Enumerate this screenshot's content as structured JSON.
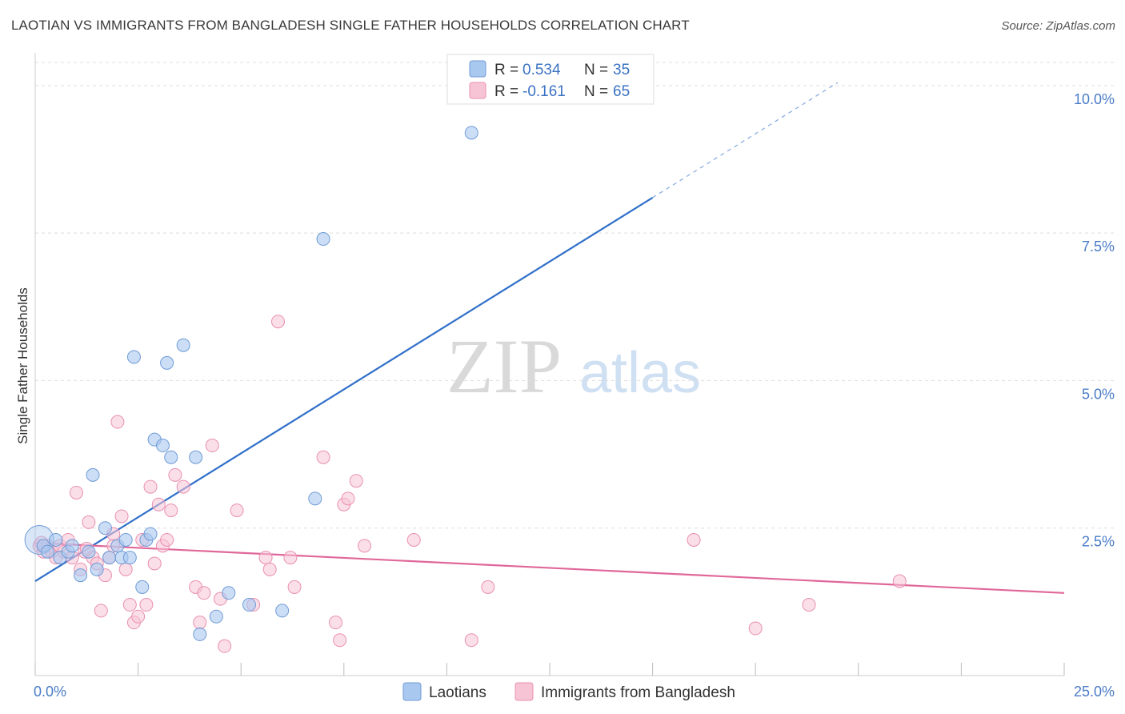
{
  "title": "LAOTIAN VS IMMIGRANTS FROM BANGLADESH SINGLE FATHER HOUSEHOLDS CORRELATION CHART",
  "source": "Source: ZipAtlas.com",
  "watermark": {
    "zip": "ZIP",
    "atlas": "atlas"
  },
  "colors": {
    "laotian_fill": "#a9c8f0",
    "laotian_stroke": "#6f9bd6",
    "laotian_line": "#3170c9",
    "bangladesh_fill": "#f7c4d6",
    "bangladesh_stroke": "#e98fb0",
    "bangladesh_line": "#e0679a",
    "tick_label": "#4a7cc7",
    "grid": "#dddddd"
  },
  "legend": {
    "r_label": "R =",
    "n_label": "N =",
    "laotian": {
      "r": "0.534",
      "n": "35"
    },
    "bangladesh": {
      "r": "-0.161",
      "n": "65"
    }
  },
  "chart_data": {
    "type": "scatter",
    "ylabel": "Single Father Households",
    "xlim": [
      0,
      25
    ],
    "ylim": [
      0,
      10.5
    ],
    "x_tick_labels": [
      "0.0%",
      "25.0%"
    ],
    "y_ticks": [
      2.5,
      5.0,
      7.5,
      10.0
    ],
    "y_tick_labels": [
      "2.5%",
      "5.0%",
      "7.5%",
      "10.0%"
    ],
    "grid": "horizontal dashed",
    "series": [
      {
        "name": "Laotians",
        "trend": {
          "x0": 0.0,
          "y0": 1.6,
          "x1": 15.0,
          "y1": 8.1,
          "dashed_to_x": 19.5,
          "dashed_to_y": 10.05
        },
        "points": [
          [
            0.1,
            2.3
          ],
          [
            0.2,
            2.2
          ],
          [
            0.3,
            2.1
          ],
          [
            0.5,
            2.3
          ],
          [
            0.6,
            2.0
          ],
          [
            0.8,
            2.1
          ],
          [
            0.9,
            2.2
          ],
          [
            1.1,
            1.7
          ],
          [
            1.3,
            2.1
          ],
          [
            1.4,
            3.4
          ],
          [
            1.5,
            1.8
          ],
          [
            1.7,
            2.5
          ],
          [
            1.8,
            2.0
          ],
          [
            2.0,
            2.2
          ],
          [
            2.1,
            2.0
          ],
          [
            2.2,
            2.3
          ],
          [
            2.3,
            2.0
          ],
          [
            2.4,
            5.4
          ],
          [
            2.6,
            1.5
          ],
          [
            2.7,
            2.3
          ],
          [
            2.8,
            2.4
          ],
          [
            2.9,
            4.0
          ],
          [
            3.1,
            3.9
          ],
          [
            3.2,
            5.3
          ],
          [
            3.3,
            3.7
          ],
          [
            3.6,
            5.6
          ],
          [
            3.9,
            3.7
          ],
          [
            4.0,
            0.7
          ],
          [
            4.4,
            1.0
          ],
          [
            4.7,
            1.4
          ],
          [
            5.2,
            1.2
          ],
          [
            6.0,
            1.1
          ],
          [
            6.8,
            3.0
          ],
          [
            7.0,
            7.4
          ],
          [
            10.6,
            9.2
          ]
        ]
      },
      {
        "name": "Immigrants from Bangladesh",
        "trend": {
          "x0": 0.0,
          "y0": 2.25,
          "x1": 25.0,
          "y1": 1.4
        },
        "points": [
          [
            0.1,
            2.2
          ],
          [
            0.2,
            2.1
          ],
          [
            0.3,
            2.2
          ],
          [
            0.4,
            2.1
          ],
          [
            0.5,
            2.0
          ],
          [
            0.6,
            2.2
          ],
          [
            0.7,
            2.1
          ],
          [
            0.8,
            2.3
          ],
          [
            0.9,
            2.0
          ],
          [
            1.0,
            3.1
          ],
          [
            1.1,
            1.8
          ],
          [
            1.2,
            2.1
          ],
          [
            1.3,
            2.6
          ],
          [
            1.4,
            2.0
          ],
          [
            1.5,
            1.9
          ],
          [
            1.6,
            1.1
          ],
          [
            1.7,
            1.7
          ],
          [
            1.8,
            2.0
          ],
          [
            1.9,
            2.2
          ],
          [
            2.0,
            4.3
          ],
          [
            2.1,
            2.7
          ],
          [
            2.2,
            1.8
          ],
          [
            2.3,
            1.2
          ],
          [
            2.4,
            0.9
          ],
          [
            2.5,
            1.0
          ],
          [
            2.6,
            2.3
          ],
          [
            2.7,
            1.2
          ],
          [
            2.8,
            3.2
          ],
          [
            2.9,
            1.9
          ],
          [
            3.0,
            2.9
          ],
          [
            3.1,
            2.2
          ],
          [
            3.2,
            2.3
          ],
          [
            3.3,
            2.8
          ],
          [
            3.4,
            3.4
          ],
          [
            3.6,
            3.2
          ],
          [
            3.9,
            1.5
          ],
          [
            4.0,
            0.9
          ],
          [
            4.1,
            1.4
          ],
          [
            4.3,
            3.9
          ],
          [
            4.5,
            1.3
          ],
          [
            4.6,
            0.5
          ],
          [
            4.9,
            2.8
          ],
          [
            5.3,
            1.2
          ],
          [
            5.6,
            2.0
          ],
          [
            5.7,
            1.8
          ],
          [
            5.9,
            6.0
          ],
          [
            6.2,
            2.0
          ],
          [
            6.3,
            1.5
          ],
          [
            7.0,
            3.7
          ],
          [
            7.3,
            0.9
          ],
          [
            7.4,
            0.6
          ],
          [
            7.5,
            2.9
          ],
          [
            7.6,
            3.0
          ],
          [
            7.8,
            3.3
          ],
          [
            8.0,
            2.2
          ],
          [
            9.2,
            2.3
          ],
          [
            10.6,
            0.6
          ],
          [
            11.0,
            1.5
          ],
          [
            16.0,
            2.3
          ],
          [
            17.5,
            0.8
          ],
          [
            18.8,
            1.2
          ],
          [
            21.0,
            1.6
          ],
          [
            0.15,
            2.25
          ],
          [
            1.25,
            2.15
          ],
          [
            1.9,
            2.4
          ]
        ]
      }
    ]
  },
  "bottom_legend": {
    "laotian": "Laotians",
    "bangladesh": "Immigrants from Bangladesh"
  }
}
